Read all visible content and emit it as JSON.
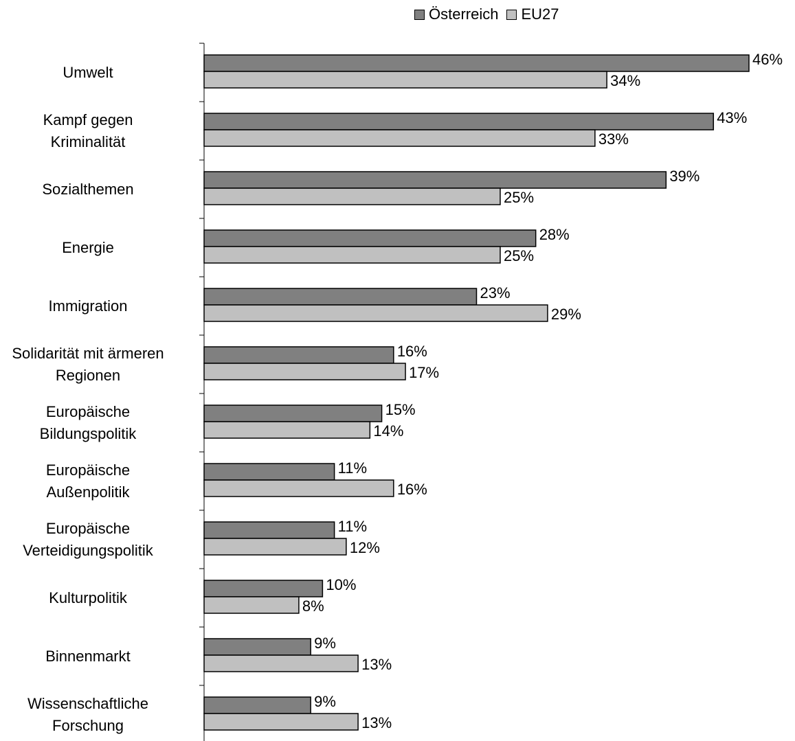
{
  "chart_data": {
    "type": "barh",
    "categories": [
      "Umwelt",
      "Kampf gegen\nKriminalität",
      "Sozialthemen",
      "Energie",
      "Immigration",
      "Solidarität mit ärmeren\nRegionen",
      "Europäische\nBildungspolitik",
      "Europäische\nAußenpolitik",
      "Europäische\nVerteidigungspolitik",
      "Kulturpolitik",
      "Binnenmarkt",
      "Wissenschaftliche\nForschung"
    ],
    "series": [
      {
        "name": "Österreich",
        "color": "#808080",
        "values": [
          46,
          43,
          39,
          28,
          23,
          16,
          15,
          11,
          11,
          10,
          9,
          9
        ],
        "value_labels": [
          "46%",
          "43%",
          "39%",
          "28%",
          "23%",
          "16%",
          "15%",
          "11%",
          "11%",
          "10%",
          "9%",
          "9%"
        ]
      },
      {
        "name": "EU27",
        "color": "#c0c0c0",
        "values": [
          34,
          33,
          25,
          25,
          29,
          17,
          14,
          16,
          12,
          8,
          13,
          13
        ],
        "value_labels": [
          "34%",
          "33%",
          "25%",
          "25%",
          "29%",
          "17%",
          "14%",
          "16%",
          "12%",
          "8%",
          "13%",
          "13%"
        ]
      }
    ],
    "legend": "top"
  }
}
